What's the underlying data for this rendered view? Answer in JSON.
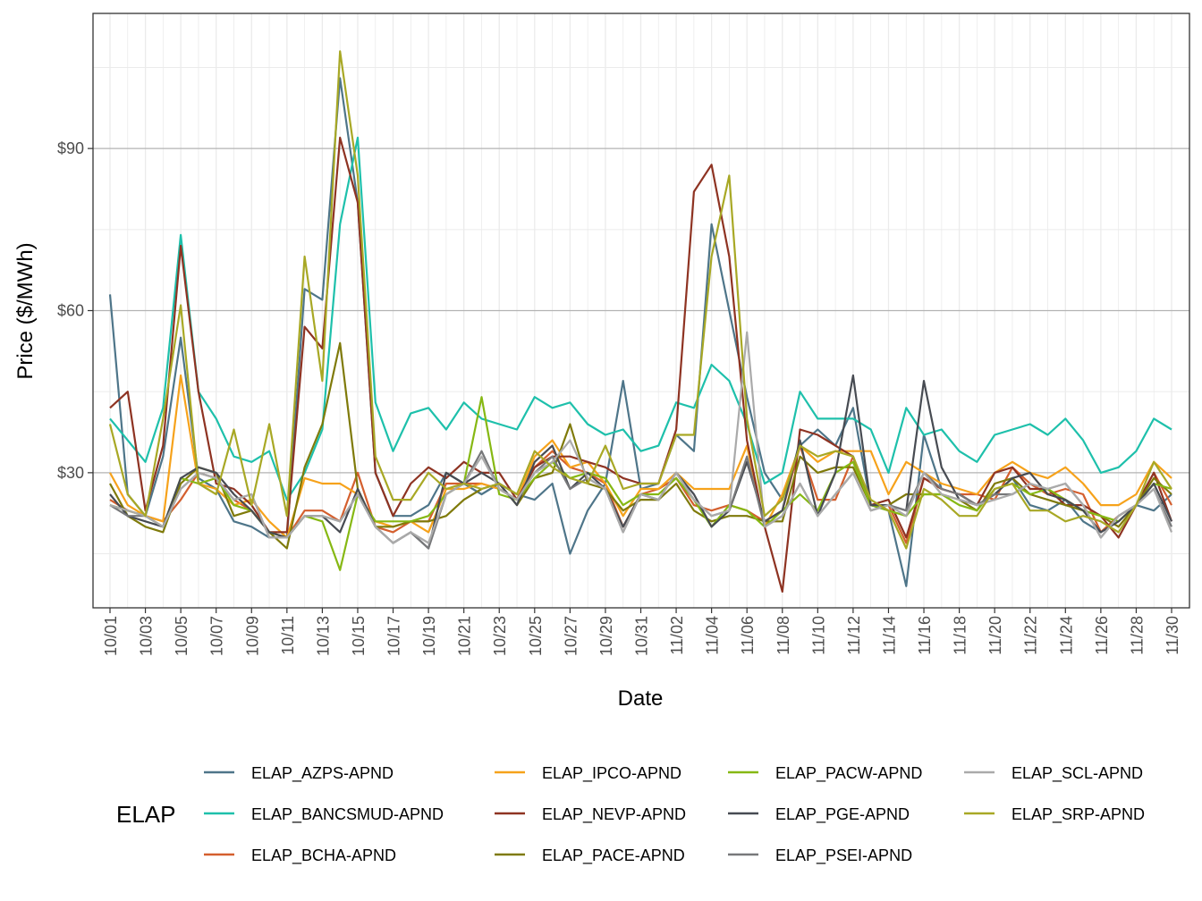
{
  "chart_data": {
    "type": "line",
    "title": "",
    "xlabel": "Date",
    "ylabel": "Price ($/MWh)",
    "ylim": [
      5,
      115
    ],
    "y_ticks": [
      30,
      60,
      90
    ],
    "y_tick_labels": [
      "$30",
      "$60",
      "$90"
    ],
    "x_tick_labels": [
      "10/01",
      "10/03",
      "10/05",
      "10/07",
      "10/09",
      "10/11",
      "10/13",
      "10/15",
      "10/17",
      "10/19",
      "10/21",
      "10/23",
      "10/25",
      "10/27",
      "10/29",
      "10/31",
      "11/02",
      "11/04",
      "11/06",
      "11/08",
      "11/10",
      "11/12",
      "11/14",
      "11/16",
      "11/18",
      "11/20",
      "11/22",
      "11/24",
      "11/26",
      "11/28",
      "11/30"
    ],
    "grid": true,
    "legend_title": "ELAP",
    "legend_position": "bottom",
    "x": [
      "10/01",
      "10/02",
      "10/03",
      "10/04",
      "10/05",
      "10/06",
      "10/07",
      "10/08",
      "10/09",
      "10/10",
      "10/11",
      "10/12",
      "10/13",
      "10/14",
      "10/15",
      "10/16",
      "10/17",
      "10/18",
      "10/19",
      "10/20",
      "10/21",
      "10/22",
      "10/23",
      "10/24",
      "10/25",
      "10/26",
      "10/27",
      "10/28",
      "10/29",
      "10/30",
      "10/31",
      "11/01",
      "11/02",
      "11/03",
      "11/04",
      "11/05",
      "11/06",
      "11/07",
      "11/08",
      "11/09",
      "11/10",
      "11/11",
      "11/12",
      "11/13",
      "11/14",
      "11/15",
      "11/16",
      "11/17",
      "11/18",
      "11/19",
      "11/20",
      "11/21",
      "11/22",
      "11/23",
      "11/24",
      "11/25",
      "11/26",
      "11/27",
      "11/28",
      "11/29",
      "11/30"
    ],
    "series": [
      {
        "name": "ELAP_AZPS-APND",
        "color": "#4e7589",
        "values": [
          63,
          26,
          22,
          33,
          55,
          29,
          27,
          21,
          20,
          18,
          18,
          64,
          62,
          103,
          80,
          30,
          22,
          22,
          24,
          30,
          28,
          26,
          28,
          26,
          25,
          28,
          15,
          23,
          28,
          47,
          27,
          28,
          37,
          34,
          76,
          60,
          44,
          30,
          25,
          35,
          38,
          35,
          42,
          24,
          23,
          9,
          37,
          27,
          26,
          24,
          26,
          29,
          24,
          23,
          25,
          21,
          19,
          22,
          24,
          23,
          26
        ]
      },
      {
        "name": "ELAP_BANCSMUD-APND",
        "color": "#1ec0ab",
        "values": [
          40,
          36,
          32,
          42,
          74,
          45,
          40,
          33,
          32,
          34,
          25,
          30,
          38,
          76,
          92,
          43,
          34,
          41,
          42,
          38,
          43,
          40,
          39,
          38,
          44,
          42,
          43,
          39,
          37,
          38,
          34,
          35,
          43,
          42,
          50,
          47,
          39,
          28,
          30,
          45,
          40,
          40,
          40,
          38,
          30,
          42,
          37,
          38,
          34,
          32,
          37,
          38,
          39,
          37,
          40,
          36,
          30,
          31,
          34,
          40,
          38
        ]
      },
      {
        "name": "ELAP_BCHA-APND",
        "color": "#d45f2e",
        "values": [
          25,
          23,
          22,
          21,
          25,
          30,
          29,
          25,
          23,
          19,
          18,
          23,
          23,
          21,
          30,
          20,
          19,
          21,
          21,
          28,
          28,
          28,
          27,
          25,
          31,
          34,
          31,
          30,
          28,
          20,
          26,
          27,
          29,
          24,
          23,
          24,
          23,
          21,
          23,
          35,
          25,
          25,
          33,
          24,
          24,
          17,
          29,
          27,
          26,
          26,
          25,
          31,
          28,
          26,
          27,
          26,
          19,
          22,
          24,
          30,
          24
        ]
      },
      {
        "name": "ELAP_IPCO-APND",
        "color": "#f6a21b",
        "values": [
          30,
          24,
          22,
          21,
          48,
          28,
          27,
          24,
          25,
          21,
          18,
          29,
          28,
          28,
          26,
          21,
          20,
          21,
          19,
          27,
          27,
          28,
          27,
          25,
          33,
          36,
          31,
          32,
          28,
          22,
          27,
          27,
          30,
          27,
          27,
          27,
          35,
          20,
          26,
          35,
          32,
          34,
          34,
          34,
          26,
          32,
          30,
          28,
          27,
          26,
          30,
          32,
          30,
          29,
          31,
          28,
          24,
          24,
          26,
          32,
          29
        ]
      },
      {
        "name": "ELAP_NEVP-APND",
        "color": "#8e3322",
        "values": [
          42,
          45,
          23,
          35,
          72,
          45,
          28,
          27,
          24,
          19,
          19,
          57,
          53,
          92,
          80,
          30,
          22,
          28,
          31,
          29,
          32,
          30,
          30,
          25,
          31,
          33,
          33,
          32,
          31,
          29,
          28,
          28,
          38,
          82,
          87,
          70,
          36,
          20,
          8,
          38,
          37,
          35,
          33,
          24,
          25,
          18,
          29,
          27,
          26,
          24,
          30,
          31,
          27,
          27,
          24,
          24,
          22,
          18,
          24,
          30,
          21
        ]
      },
      {
        "name": "ELAP_PACE-APND",
        "color": "#7f7a0a",
        "values": [
          28,
          22,
          20,
          19,
          28,
          31,
          30,
          22,
          23,
          19,
          16,
          31,
          39,
          54,
          27,
          20,
          20,
          21,
          21,
          22,
          25,
          27,
          28,
          24,
          29,
          30,
          39,
          28,
          27,
          23,
          25,
          25,
          28,
          23,
          21,
          22,
          22,
          21,
          21,
          33,
          30,
          31,
          31,
          24,
          24,
          26,
          26,
          26,
          25,
          23,
          28,
          29,
          26,
          25,
          24,
          23,
          22,
          20,
          24,
          29,
          26
        ]
      },
      {
        "name": "ELAP_PACW-APND",
        "color": "#86b813",
        "values": [
          24,
          23,
          22,
          20,
          29,
          28,
          29,
          24,
          23,
          19,
          18,
          22,
          21,
          12,
          26,
          21,
          21,
          21,
          22,
          26,
          28,
          44,
          26,
          25,
          29,
          32,
          29,
          30,
          29,
          24,
          26,
          26,
          29,
          25,
          20,
          24,
          23,
          20,
          23,
          26,
          23,
          30,
          32,
          24,
          23,
          22,
          26,
          26,
          24,
          23,
          27,
          28,
          26,
          27,
          25,
          23,
          22,
          21,
          24,
          28,
          27
        ]
      },
      {
        "name": "ELAP_PGE-APND",
        "color": "#474b52",
        "values": [
          26,
          22,
          21,
          20,
          29,
          31,
          30,
          26,
          23,
          19,
          18,
          22,
          22,
          19,
          27,
          20,
          17,
          19,
          16,
          30,
          28,
          30,
          28,
          24,
          32,
          35,
          27,
          30,
          27,
          20,
          26,
          25,
          30,
          26,
          20,
          23,
          32,
          21,
          23,
          36,
          22,
          30,
          48,
          24,
          24,
          23,
          47,
          31,
          25,
          24,
          26,
          29,
          30,
          26,
          25,
          23,
          19,
          21,
          24,
          28,
          21
        ]
      },
      {
        "name": "ELAP_PSEI-APND",
        "color": "#77787a",
        "values": [
          24,
          22,
          22,
          20,
          27,
          30,
          29,
          25,
          26,
          18,
          18,
          22,
          22,
          21,
          26,
          20,
          17,
          19,
          16,
          26,
          28,
          34,
          27,
          25,
          30,
          33,
          27,
          29,
          27,
          19,
          26,
          25,
          30,
          25,
          22,
          23,
          33,
          20,
          22,
          28,
          22,
          26,
          30,
          23,
          24,
          23,
          30,
          27,
          26,
          24,
          26,
          26,
          28,
          27,
          28,
          24,
          18,
          22,
          24,
          27,
          20
        ]
      },
      {
        "name": "ELAP_SCL-APND",
        "color": "#aaaaaa",
        "values": [
          24,
          23,
          22,
          20,
          27,
          30,
          29,
          25,
          26,
          18,
          18,
          22,
          22,
          21,
          26,
          20,
          17,
          19,
          17,
          26,
          28,
          33,
          27,
          25,
          30,
          32,
          36,
          29,
          27,
          19,
          26,
          25,
          30,
          25,
          22,
          23,
          56,
          20,
          22,
          28,
          22,
          26,
          30,
          23,
          24,
          22,
          30,
          26,
          25,
          24,
          25,
          26,
          28,
          27,
          28,
          24,
          18,
          22,
          24,
          27,
          19
        ]
      },
      {
        "name": "ELAP_SRP-APND",
        "color": "#a8a825",
        "values": [
          39,
          26,
          22,
          40,
          61,
          28,
          26,
          38,
          24,
          39,
          22,
          70,
          47,
          108,
          85,
          33,
          25,
          25,
          30,
          27,
          28,
          27,
          28,
          26,
          34,
          31,
          29,
          28,
          35,
          27,
          28,
          28,
          37,
          37,
          70,
          85,
          40,
          22,
          25,
          35,
          33,
          34,
          33,
          25,
          23,
          16,
          27,
          25,
          22,
          22,
          27,
          28,
          23,
          23,
          21,
          22,
          21,
          19,
          24,
          32,
          27
        ]
      }
    ]
  }
}
